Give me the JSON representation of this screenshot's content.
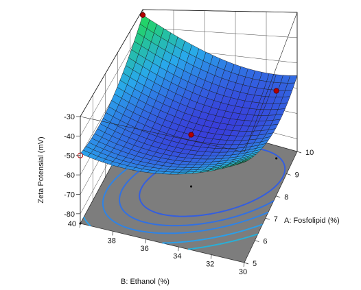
{
  "colors": {
    "surface_low": "#3a2fd8",
    "surface_mid": "#29a8ec",
    "surface_high": "#22d36a",
    "floor": "#7d7d7d",
    "point": "#b30000"
  },
  "chart_data": {
    "type": "surface3d",
    "title": "",
    "x_axis": {
      "name": "A: Fosfolipid (%)",
      "range": [
        5,
        10
      ],
      "ticks": [
        "5",
        "6",
        "7",
        "8",
        "9",
        "10"
      ]
    },
    "y_axis": {
      "name": "B: Ethanol (%)",
      "range": [
        30,
        40
      ],
      "ticks": [
        "30",
        "32",
        "34",
        "36",
        "38",
        "40"
      ]
    },
    "z_axis": {
      "name": "Zeta Potensial (mV)",
      "range": [
        -85,
        -30
      ],
      "ticks": [
        "-30",
        "-40",
        "-50",
        "-60",
        "-70",
        "-80"
      ]
    },
    "surface_minimum": {
      "A": 7.5,
      "B": 35,
      "zeta": -60
    },
    "design_points": [
      {
        "A": 10,
        "B": 40,
        "zeta": -33
      },
      {
        "A": 5,
        "B": 40,
        "zeta": -50
      },
      {
        "A": 7.5,
        "B": 35,
        "zeta": -60
      },
      {
        "A": 9.5,
        "B": 31,
        "zeta": -57
      }
    ],
    "contour_levels": [
      -57,
      -55,
      -53,
      -50,
      -47
    ]
  }
}
